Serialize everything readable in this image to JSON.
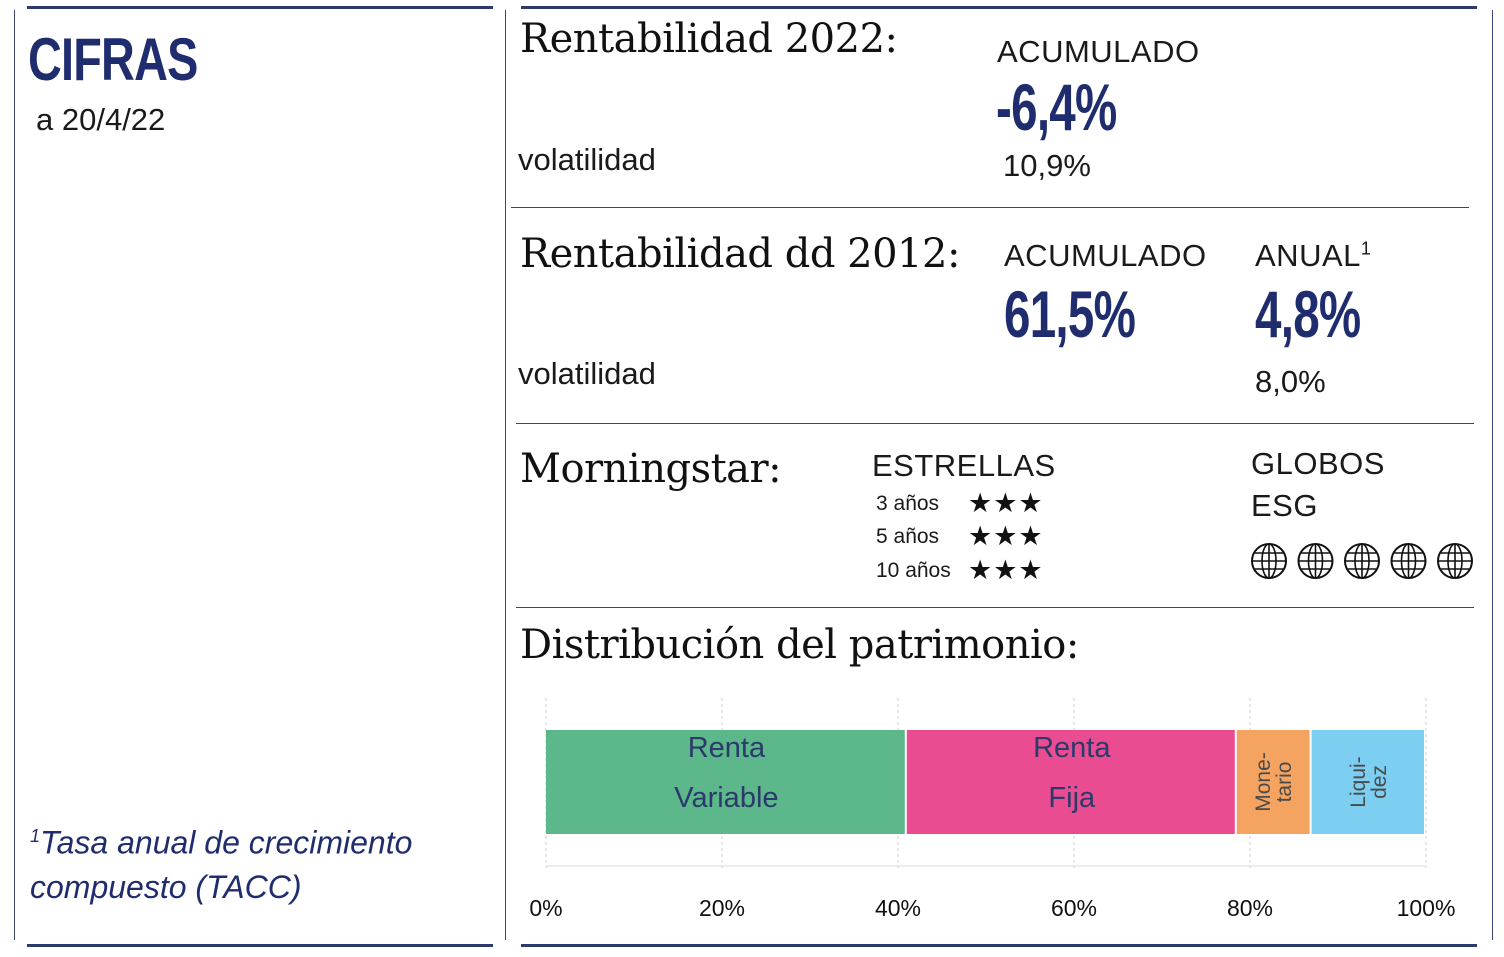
{
  "left_panel": {
    "brand": "CIFRAS",
    "date": "a 20/4/22",
    "footnote_marker": "1",
    "footnote_text": "Tasa anual de crecimiento compuesto (TACC)"
  },
  "rent_2022": {
    "title": "Rentabilidad 2022:",
    "acumulado_label": "ACUMULADO",
    "acumulado_value": "-6,4%",
    "volatilidad_label": "volatilidad",
    "volatilidad_value": "10,9%"
  },
  "rent_2012": {
    "title": "Rentabilidad dd 2012:",
    "acumulado_label": "ACUMULADO",
    "acumulado_value": "61,5%",
    "anual_label": "ANUAL",
    "anual_sup": "1",
    "anual_value": "4,8%",
    "volatilidad_label": "volatilidad",
    "volatilidad_value": "8,0%"
  },
  "morningstar": {
    "title": "Morningstar:",
    "estrellas_label": "ESTRELLAS",
    "ratings": [
      {
        "period": "3 años",
        "stars": "★★★",
        "count": 3
      },
      {
        "period": "5 años",
        "stars": "★★★",
        "count": 3
      },
      {
        "period": "10 años",
        "stars": "★★★",
        "count": 3
      }
    ],
    "globos_label_1": "GLOBOS",
    "globos_label_2": "ESG",
    "globes_count": 5,
    "globe_icon": "globe-icon"
  },
  "distribucion": {
    "title": "Distribución del patrimonio:"
  },
  "chart_data": {
    "type": "bar",
    "orientation": "horizontal-stacked",
    "title": "Distribución del patrimonio:",
    "xlim": [
      0,
      100
    ],
    "ticks": [
      "0%",
      "20%",
      "40%",
      "60%",
      "80%",
      "100%"
    ],
    "tick_values": [
      0,
      20,
      40,
      60,
      80,
      100
    ],
    "grid": true,
    "segments": [
      {
        "lines": [
          "Renta",
          "Variable"
        ],
        "value": 41,
        "color": "#5cb88a",
        "text_color": "#2b3a6b",
        "rotated": false
      },
      {
        "lines": [
          "Renta",
          "Fija"
        ],
        "value": 37.5,
        "color": "#e94c91",
        "text_color": "#2b3a6b",
        "rotated": false
      },
      {
        "lines": [
          "Mone-",
          "tario"
        ],
        "value": 8.5,
        "color": "#f4a460",
        "text_color": "#4a4a4a",
        "rotated": true
      },
      {
        "lines": [
          "Liqui-",
          "dez"
        ],
        "value": 13,
        "color": "#7ccff0",
        "text_color": "#4a4a4a",
        "rotated": true
      }
    ]
  }
}
